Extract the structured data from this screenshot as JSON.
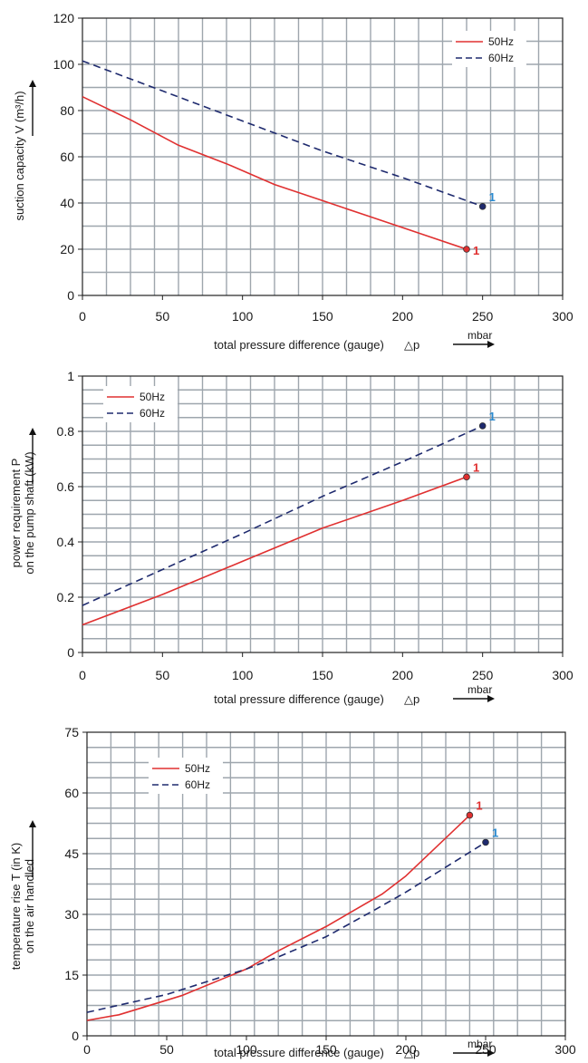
{
  "colors": {
    "series_50hz": "#e03030",
    "series_60hz": "#1e2a6e",
    "grid": "#9ea6ad",
    "marker_50hz": "#e03030",
    "marker_60hz": "#2a8ad0"
  },
  "chart_data": [
    {
      "type": "line",
      "xlabel": "total pressure difference (gauge)",
      "xlabel_symbol": "△p",
      "x_unit": "mbar",
      "ylabel_lines": [
        "suction capacity V (m³/h)"
      ],
      "xlim": [
        0,
        300
      ],
      "ylim": [
        0,
        120
      ],
      "x_ticks": [
        "0",
        "50",
        "100",
        "150",
        "200",
        "250",
        "300"
      ],
      "y_ticks": [
        "0",
        "20",
        "40",
        "60",
        "80",
        "100",
        "120"
      ],
      "x_tick_values": [
        0,
        50,
        100,
        150,
        200,
        250,
        300
      ],
      "y_tick_values": [
        0,
        20,
        40,
        60,
        80,
        100,
        120
      ],
      "grid": true,
      "legend_position": "top-right",
      "series": [
        {
          "name": "50Hz",
          "style": "solid",
          "x": [
            0,
            30,
            60,
            90,
            120,
            150,
            180,
            210,
            240
          ],
          "y": [
            86,
            76,
            65,
            57,
            48,
            41,
            34,
            27,
            20
          ],
          "end_label": "1"
        },
        {
          "name": "60Hz",
          "style": "dashed",
          "x": [
            0,
            50,
            100,
            150,
            200,
            250
          ],
          "y": [
            101.5,
            88.5,
            75.5,
            62.5,
            51,
            38.5
          ],
          "end_label": "1"
        }
      ]
    },
    {
      "type": "line",
      "xlabel": "total pressure difference (gauge)",
      "xlabel_symbol": "△p",
      "x_unit": "mbar",
      "ylabel_lines": [
        "power requirement P",
        "on the pump shaft (kW)"
      ],
      "xlim": [
        0,
        300
      ],
      "ylim": [
        0,
        1
      ],
      "x_ticks": [
        "0",
        "50",
        "100",
        "150",
        "200",
        "250",
        "300"
      ],
      "y_ticks": [
        "0",
        "0.2",
        "0.4",
        "0.6",
        "0.8",
        "1"
      ],
      "x_tick_values": [
        0,
        50,
        100,
        150,
        200,
        250,
        300
      ],
      "y_tick_values": [
        0,
        0.2,
        0.4,
        0.6,
        0.8,
        1
      ],
      "grid": true,
      "legend_position": "top-left",
      "series": [
        {
          "name": "50Hz",
          "style": "solid",
          "x": [
            0,
            50,
            100,
            150,
            200,
            240
          ],
          "y": [
            0.1,
            0.21,
            0.33,
            0.45,
            0.55,
            0.635
          ],
          "end_label": "1"
        },
        {
          "name": "60Hz",
          "style": "dashed",
          "x": [
            0,
            50,
            100,
            150,
            200,
            250
          ],
          "y": [
            0.17,
            0.3,
            0.43,
            0.565,
            0.69,
            0.82
          ],
          "end_label": "1"
        }
      ]
    },
    {
      "type": "line",
      "xlabel": "total pressure difference (gauge)",
      "xlabel_symbol": "△p",
      "x_unit": "mbar",
      "ylabel_lines": [
        "temperature rise T (in K)",
        "on the air handled"
      ],
      "xlim": [
        0,
        300
      ],
      "ylim": [
        0,
        75
      ],
      "x_ticks": [
        "0",
        "50",
        "100",
        "150",
        "200",
        "250",
        "300"
      ],
      "y_ticks": [
        "0",
        "15",
        "30",
        "45",
        "60",
        "75"
      ],
      "x_tick_values": [
        0,
        50,
        100,
        150,
        200,
        250,
        300
      ],
      "y_tick_values": [
        0,
        15,
        30,
        45,
        60,
        75
      ],
      "grid": true,
      "legend_position": "top-left",
      "series": [
        {
          "name": "50Hz",
          "style": "solid",
          "x": [
            0,
            20,
            60,
            100,
            120,
            150,
            185,
            200,
            240
          ],
          "y": [
            3.8,
            5.2,
            10,
            16.5,
            21,
            27,
            35,
            39.5,
            54.5
          ],
          "end_label": "1"
        },
        {
          "name": "60Hz",
          "style": "dashed",
          "x": [
            0,
            50,
            100,
            120,
            150,
            180,
            200,
            250
          ],
          "y": [
            5.8,
            10.2,
            16.5,
            19.5,
            24.5,
            31,
            35.5,
            47.8
          ],
          "end_label": "1"
        }
      ]
    }
  ]
}
